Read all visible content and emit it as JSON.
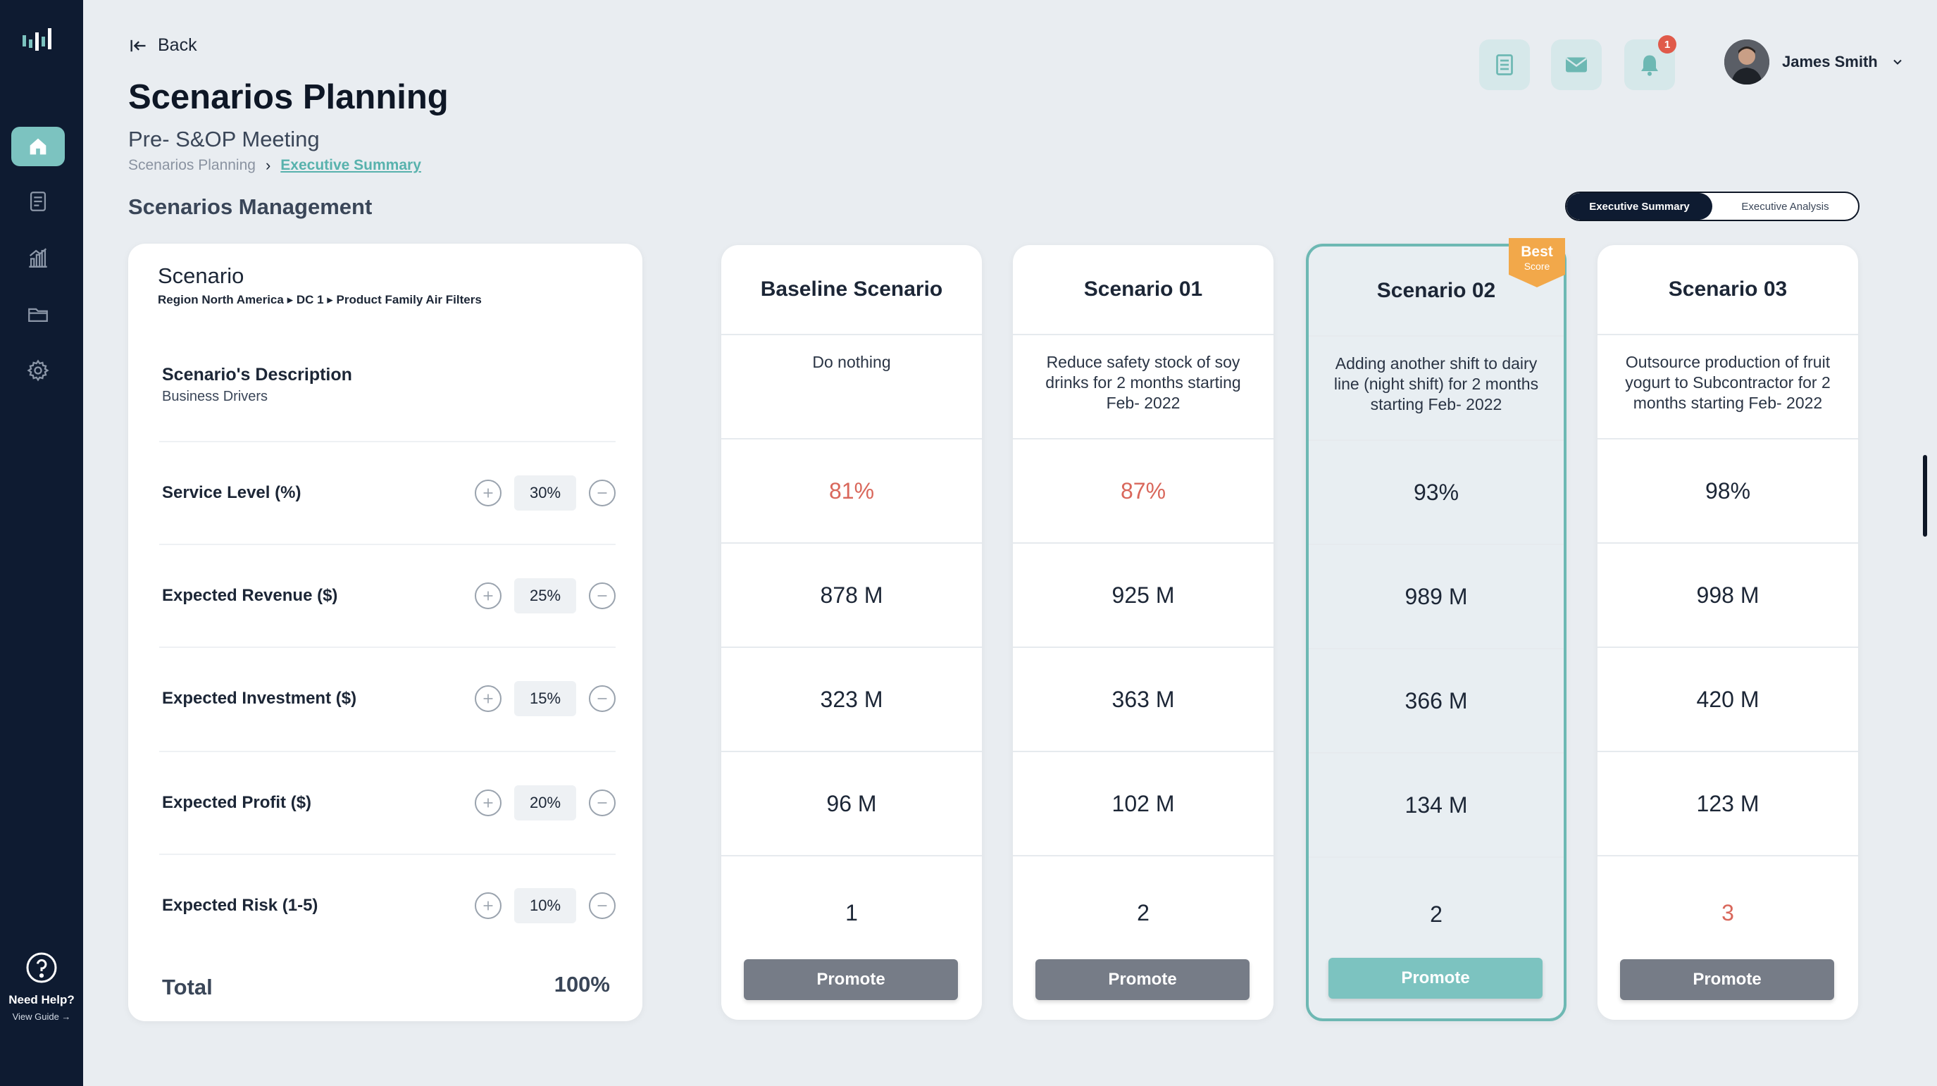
{
  "nav": {
    "back_label": "Back",
    "page_title": "Scenarios Planning",
    "subtitle": "Pre- S&OP Meeting",
    "breadcrumb": [
      "Scenarios Planning",
      "Executive Summary"
    ],
    "section_title": "Scenarios Management"
  },
  "header": {
    "notification_count": "1",
    "user_name": "James Smith"
  },
  "view_toggle": {
    "options": [
      "Executive Summary",
      "Executive Analysis"
    ],
    "selected": "Executive Summary"
  },
  "scenario_panel": {
    "title": "Scenario",
    "path": "Region North America ▸ DC 1 ▸ Product Family Air Filters",
    "description_title": "Scenario's Description",
    "description_sub": "Business Drivers",
    "drivers": [
      {
        "label": "Service Level (%)",
        "weight": "30%"
      },
      {
        "label": "Expected Revenue ($)",
        "weight": "25%"
      },
      {
        "label": "Expected Investment ($)",
        "weight": "15%"
      },
      {
        "label": "Expected Profit ($)",
        "weight": "20%"
      },
      {
        "label": "Expected Risk (1-5)",
        "weight": "10%"
      }
    ],
    "total_label": "Total",
    "total_value": "100%"
  },
  "scenarios": [
    {
      "name": "Baseline Scenario",
      "description": "Do nothing",
      "values": [
        "81%",
        "878 M",
        "323 M",
        "96 M",
        "1"
      ],
      "warn": [
        true,
        false,
        false,
        false,
        false
      ],
      "action": "Promote"
    },
    {
      "name": "Scenario 01",
      "description": "Reduce safety stock of soy drinks for 2 months starting Feb- 2022",
      "values": [
        "87%",
        "925 M",
        "363 M",
        "102 M",
        "2"
      ],
      "warn": [
        true,
        false,
        false,
        false,
        false
      ],
      "action": "Promote"
    },
    {
      "name": "Scenario 02",
      "description": "Adding another shift to dairy line (night shift) for 2 months starting Feb- 2022",
      "values": [
        "93%",
        "989 M",
        "366 M",
        "134 M",
        "2"
      ],
      "warn": [
        false,
        false,
        false,
        false,
        false
      ],
      "action": "Promote",
      "badge": [
        "Best",
        "Score"
      ]
    },
    {
      "name": "Scenario 03",
      "description": "Outsource production of fruit yogurt to Subcontractor for 2 months starting Feb- 2022",
      "values": [
        "98%",
        "998 M",
        "420 M",
        "123 M",
        "3"
      ],
      "warn": [
        false,
        false,
        false,
        false,
        true
      ],
      "action": "Promote"
    }
  ],
  "sidebar": {
    "help_title": "Need Help?",
    "help_link": "View Guide →"
  },
  "colors": {
    "sidebar": "#0e1b31",
    "accent": "#7cc3c0",
    "warn": "#d9675b",
    "promote": "#767c87"
  }
}
